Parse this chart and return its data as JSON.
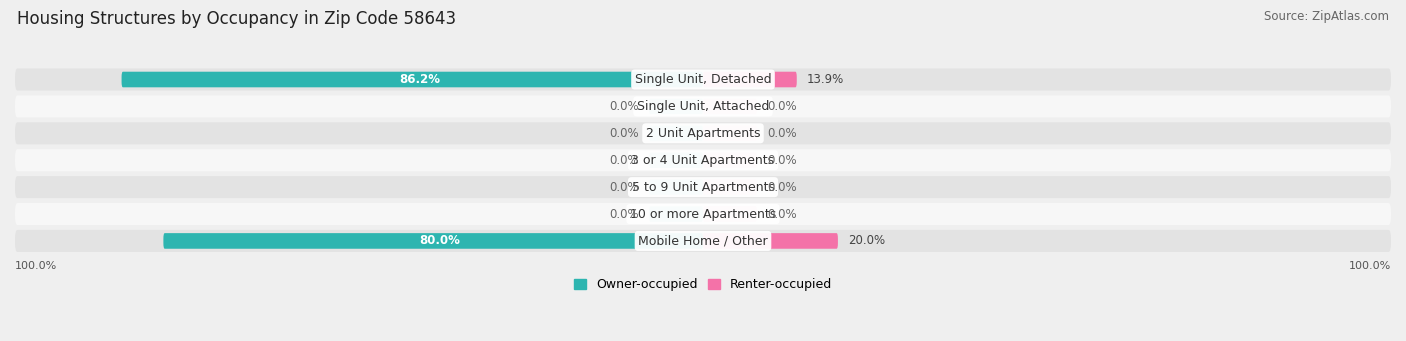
{
  "title": "Housing Structures by Occupancy in Zip Code 58643",
  "source": "Source: ZipAtlas.com",
  "categories": [
    "Single Unit, Detached",
    "Single Unit, Attached",
    "2 Unit Apartments",
    "3 or 4 Unit Apartments",
    "5 to 9 Unit Apartments",
    "10 or more Apartments",
    "Mobile Home / Other"
  ],
  "owner_pct": [
    86.2,
    0.0,
    0.0,
    0.0,
    0.0,
    0.0,
    80.0
  ],
  "renter_pct": [
    13.9,
    0.0,
    0.0,
    0.0,
    0.0,
    0.0,
    20.0
  ],
  "owner_color": "#2db5b0",
  "renter_color": "#f472a8",
  "owner_stub_color": "#8fd4d2",
  "renter_stub_color": "#f9b8d0",
  "bg_color": "#efefef",
  "row_bg_light": "#f7f7f7",
  "row_bg_dark": "#e3e3e3",
  "title_fontsize": 12,
  "source_fontsize": 8.5,
  "bar_height": 0.58,
  "label_fontsize": 9,
  "pct_fontsize": 8.5,
  "axis_label_fontsize": 8,
  "legend_fontsize": 9,
  "stub_size": 8.0,
  "total_width": 100
}
